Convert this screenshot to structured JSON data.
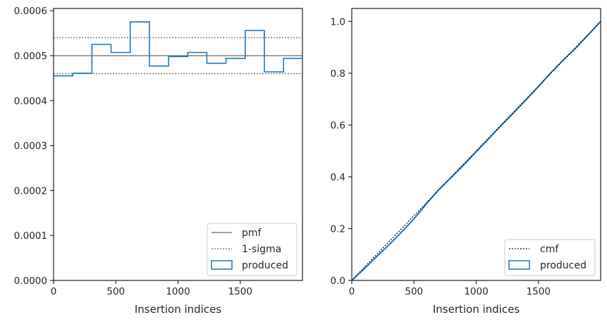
{
  "chart_data": [
    {
      "type": "step",
      "xlabel": "Insertion indices",
      "ylabel": "",
      "xlim": [
        0,
        2000
      ],
      "ylim": [
        0,
        0.000605
      ],
      "xticks": [
        0,
        500,
        1000,
        1500
      ],
      "xtick_labels": [
        "0",
        "500",
        "1000",
        "1500"
      ],
      "yticks": [
        0,
        0.0001,
        0.0002,
        0.0003,
        0.0004,
        0.0005,
        0.0006
      ],
      "ytick_labels": [
        "0.0000",
        "0.0001",
        "0.0002",
        "0.0003",
        "0.0004",
        "0.0005",
        "0.0006"
      ],
      "bin_edges": [
        0,
        154,
        308,
        462,
        616,
        770,
        924,
        1078,
        1232,
        1386,
        1540,
        1694,
        1848,
        2000
      ],
      "produced": [
        0.000455,
        0.000461,
        0.000525,
        0.000507,
        0.000575,
        0.000477,
        0.000498,
        0.000507,
        0.000483,
        0.000494,
        0.000556,
        0.000464,
        0.000494
      ],
      "pmf": 0.0005,
      "sigma_lower": 0.00046,
      "sigma_upper": 0.00054,
      "legend": [
        "pmf",
        "1-sigma",
        "produced"
      ],
      "legend_position": "lower right",
      "colors": {
        "produced": "#1f77b4",
        "pmf": "#808080",
        "sigma": "#808080"
      }
    },
    {
      "type": "line",
      "xlabel": "Insertion indices",
      "ylabel": "",
      "xlim": [
        0,
        2000
      ],
      "ylim": [
        0,
        1.05
      ],
      "xticks": [
        0,
        500,
        1000,
        1500
      ],
      "xtick_labels": [
        "0",
        "500",
        "1000",
        "1500"
      ],
      "yticks": [
        0,
        0.2,
        0.4,
        0.6,
        0.8,
        1.0
      ],
      "ytick_labels": [
        "0.0",
        "0.2",
        "0.4",
        "0.6",
        "0.8",
        "1.0"
      ],
      "cmf": {
        "x": [
          0,
          2000
        ],
        "y": [
          0,
          1.0
        ]
      },
      "produced": {
        "x": [
          0,
          100,
          200,
          300,
          400,
          500,
          600,
          700,
          800,
          900,
          1000,
          1100,
          1200,
          1300,
          1400,
          1500,
          1600,
          1700,
          1800,
          1900,
          2000
        ],
        "y": [
          0,
          0.045,
          0.092,
          0.138,
          0.187,
          0.238,
          0.296,
          0.351,
          0.398,
          0.446,
          0.497,
          0.547,
          0.598,
          0.647,
          0.697,
          0.749,
          0.802,
          0.851,
          0.897,
          0.948,
          1.0
        ]
      },
      "legend": [
        "cmf",
        "produced"
      ],
      "legend_position": "lower right",
      "colors": {
        "produced": "#1f77b4",
        "cmf": "#000000"
      }
    }
  ]
}
